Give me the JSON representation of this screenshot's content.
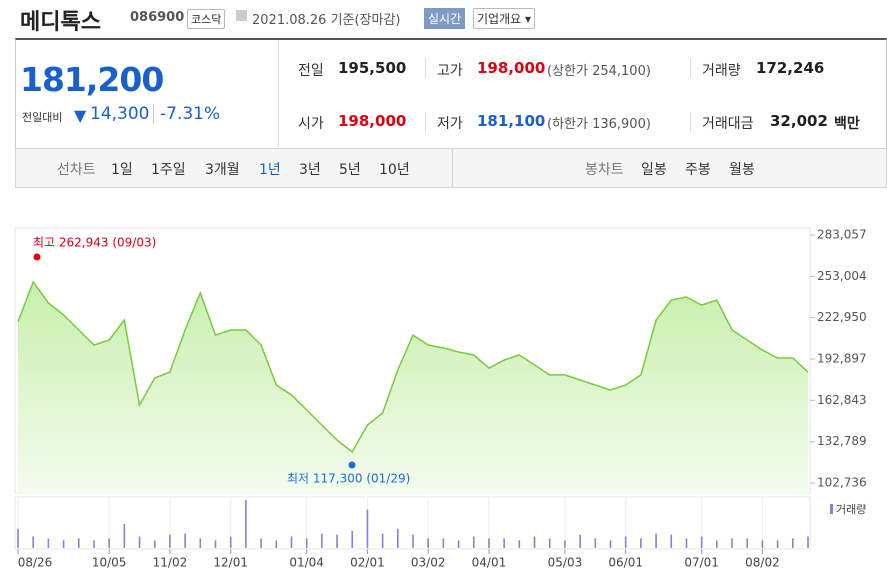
{
  "header": {
    "name": "메디톡스",
    "code": "086900",
    "market": "코스닥",
    "date": "2021.08.26 기준(장마감)",
    "realtime": "실시간",
    "overview": "기업개요"
  },
  "quote": {
    "price": "181,200",
    "change_label": "전일대비",
    "change": "14,300",
    "change_pct": "-7.31%"
  },
  "info": [
    {
      "label": "전일",
      "value": "195,500"
    },
    {
      "label": "고가",
      "value": "198,000",
      "extra": "(상한가 254,100)"
    },
    {
      "label": "거래량",
      "value": "172,246"
    },
    {
      "label": "시가",
      "value": "198,000"
    },
    {
      "label": "저가",
      "value": "181,100",
      "extra": "(하한가 136,900)"
    },
    {
      "label": "거래대금",
      "value": "32,002",
      "unit": "백만"
    }
  ],
  "tabs": {
    "line_label": "선차트",
    "line": [
      "1일",
      "1주일",
      "3개월",
      "1년",
      "3년",
      "5년",
      "10년"
    ],
    "line_selected": "1년",
    "candle_label": "봉차트",
    "candle": [
      "일봉",
      "주봉",
      "월봉"
    ]
  },
  "chart_data": {
    "type": "area",
    "color": "#77cc3a",
    "categories": [
      "08/26",
      null,
      null,
      null,
      null,
      null,
      "10/05",
      null,
      null,
      null,
      "11/02",
      null,
      null,
      null,
      "12/01",
      null,
      null,
      null,
      null,
      "01/04",
      null,
      null,
      null,
      "02/01",
      null,
      null,
      null,
      "03/02",
      null,
      null,
      null,
      "04/01",
      null,
      null,
      null,
      null,
      "05/03",
      null,
      null,
      null,
      "06/01",
      null,
      null,
      null,
      null,
      "07/01",
      null,
      null,
      null,
      "08/02",
      null,
      null,
      null
    ],
    "values": [
      219800,
      248900,
      233600,
      224900,
      214000,
      203100,
      206700,
      221200,
      159400,
      179100,
      183400,
      214000,
      240900,
      210300,
      214000,
      214000,
      203100,
      174000,
      166700,
      155800,
      144900,
      134000,
      125300,
      144900,
      153600,
      184900,
      210300,
      203100,
      200900,
      198000,
      195800,
      186300,
      192100,
      195800,
      188500,
      181300,
      181300,
      177600,
      174000,
      170300,
      174000,
      181300,
      221200,
      235800,
      238000,
      232100,
      235800,
      214000,
      206700,
      199400,
      193600,
      193600,
      183400
    ],
    "ylim": [
      102736,
      283057
    ],
    "yticks": [
      {
        "value": 102736,
        "label": "102,736"
      },
      {
        "value": 132789,
        "label": "132,789"
      },
      {
        "value": 162843,
        "label": "162,843"
      },
      {
        "value": 192897,
        "label": "192,897"
      },
      {
        "value": 222950,
        "label": "222,950"
      },
      {
        "value": 253004,
        "label": "253,004"
      },
      {
        "value": 283057,
        "label": "283,057"
      }
    ],
    "annotations": [
      {
        "text": "최고 262,943 (09/03)",
        "color": "#e0000f"
      },
      {
        "text": "최저 117,300 (01/29)",
        "color": "#1a6fd6"
      }
    ],
    "volume": {
      "name": "거래량",
      "color": "#8b7fd6",
      "values": [
        100000,
        60000,
        50000,
        40000,
        50000,
        40000,
        50000,
        125000,
        60000,
        40000,
        70000,
        75000,
        50000,
        40000,
        60000,
        250000,
        50000,
        40000,
        60000,
        50000,
        75000,
        70000,
        90000,
        200000,
        75000,
        100000,
        70000,
        50000,
        50000,
        40000,
        60000,
        50000,
        50000,
        40000,
        60000,
        50000,
        40000,
        70000,
        50000,
        40000,
        60000,
        50000,
        75000,
        70000,
        50000,
        60000,
        40000,
        50000,
        50000,
        40000,
        40000,
        50000,
        60000
      ]
    }
  }
}
